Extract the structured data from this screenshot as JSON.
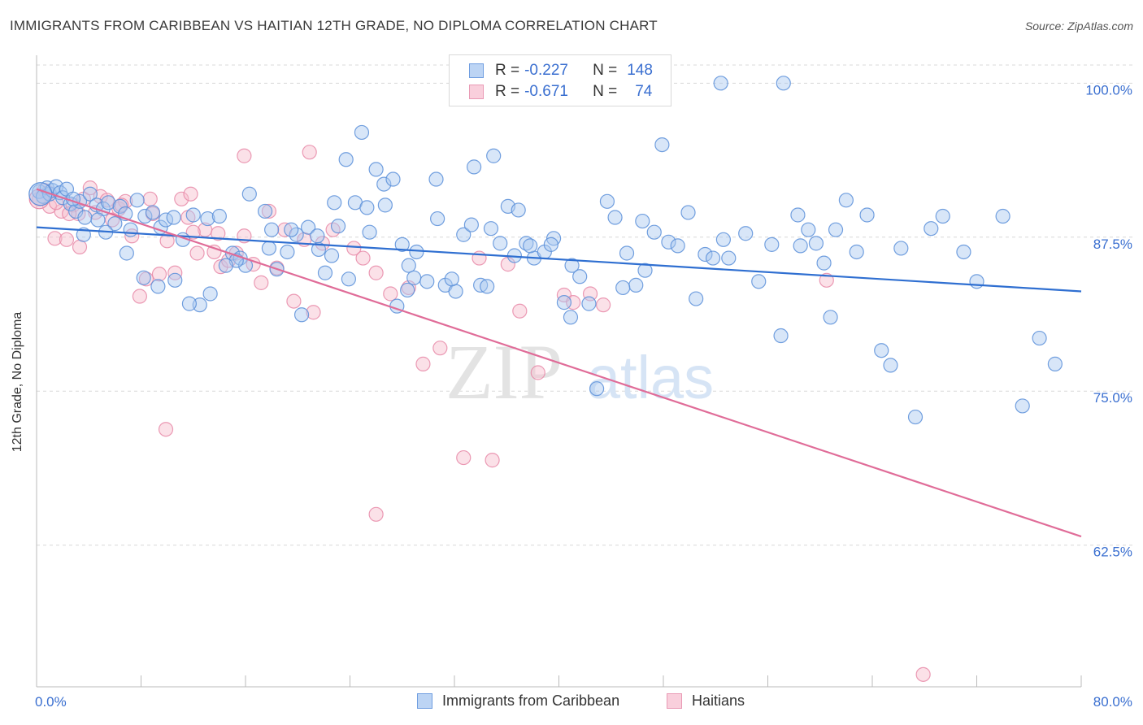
{
  "title": "IMMIGRANTS FROM CARIBBEAN VS HAITIAN 12TH GRADE, NO DIPLOMA CORRELATION CHART",
  "source": "Source: ZipAtlas.com",
  "watermark": {
    "zip": "ZIP",
    "atlas": "atlas"
  },
  "colors": {
    "blue_fill": "#a8c8f0",
    "blue_stroke": "#5b8fd9",
    "blue_line": "#2f6fd1",
    "pink_fill": "#f6bccd",
    "pink_stroke": "#e78aa8",
    "pink_line": "#e06c98",
    "axis_text": "#3a6fd0",
    "grid": "#d8d8d8"
  },
  "legend": {
    "rows": [
      {
        "r_label": "R =",
        "r_value": "-0.227",
        "n_label": "N =",
        "n_value": "148",
        "color": "blue"
      },
      {
        "r_label": "R =",
        "r_value": "-0.671",
        "n_label": "N =",
        "n_value": "74",
        "color": "pink"
      }
    ]
  },
  "bottom_legend": [
    {
      "label": "Immigrants from Caribbean",
      "color": "blue"
    },
    {
      "label": "Haitians",
      "color": "pink"
    }
  ],
  "chart_data": {
    "type": "scatter",
    "title": "IMMIGRANTS FROM CARIBBEAN VS HAITIAN 12TH GRADE, NO DIPLOMA CORRELATION CHART",
    "xlabel": "",
    "ylabel": "12th Grade, No Diploma",
    "xlim": [
      0,
      80
    ],
    "ylim": [
      51,
      102
    ],
    "x_tick_labels": [
      "0.0%",
      "80.0%"
    ],
    "y_ticks": [
      62.5,
      75.0,
      87.5,
      100.0
    ],
    "y_tick_labels": [
      "62.5%",
      "75.0%",
      "87.5%",
      "100.0%"
    ],
    "series": [
      {
        "name": "Immigrants from Caribbean",
        "color": "blue",
        "r": -0.227,
        "n": 148,
        "trend": {
          "x": [
            0,
            80
          ],
          "y": [
            88.3,
            83.1
          ]
        },
        "points": [
          [
            0.2,
            91.2
          ],
          [
            0.5,
            90.8
          ],
          [
            0.8,
            91.5
          ],
          [
            1.0,
            91.0
          ],
          [
            1.2,
            91.3
          ],
          [
            1.5,
            91.6
          ],
          [
            1.8,
            91.1
          ],
          [
            2.0,
            90.7
          ],
          [
            2.3,
            91.4
          ],
          [
            2.6,
            90.2
          ],
          [
            3.0,
            89.6
          ],
          [
            3.3,
            90.4
          ],
          [
            3.7,
            89.1
          ],
          [
            4.1,
            91.0
          ],
          [
            4.6,
            90.1
          ],
          [
            5.1,
            89.8
          ],
          [
            5.5,
            90.3
          ],
          [
            6.0,
            88.6
          ],
          [
            6.4,
            90.0
          ],
          [
            6.8,
            89.4
          ],
          [
            7.2,
            88.1
          ],
          [
            7.7,
            90.5
          ],
          [
            8.3,
            89.2
          ],
          [
            8.9,
            89.5
          ],
          [
            9.5,
            88.3
          ],
          [
            9.9,
            88.9
          ],
          [
            10.5,
            89.1
          ],
          [
            11.2,
            87.3
          ],
          [
            12.0,
            89.3
          ],
          [
            13.1,
            89.0
          ],
          [
            14.0,
            89.2
          ],
          [
            15.0,
            86.2
          ],
          [
            15.6,
            85.8
          ],
          [
            16.3,
            91.0
          ],
          [
            17.5,
            89.6
          ],
          [
            18.0,
            88.1
          ],
          [
            19.2,
            86.3
          ],
          [
            19.9,
            87.7
          ],
          [
            20.8,
            88.3
          ],
          [
            21.5,
            87.6
          ],
          [
            22.1,
            84.6
          ],
          [
            22.6,
            86.0
          ],
          [
            23.1,
            88.4
          ],
          [
            23.9,
            84.1
          ],
          [
            24.4,
            90.3
          ],
          [
            25.3,
            89.9
          ],
          [
            26.0,
            93.0
          ],
          [
            26.6,
            91.8
          ],
          [
            27.3,
            92.2
          ],
          [
            28.0,
            86.9
          ],
          [
            28.5,
            85.2
          ],
          [
            29.1,
            86.3
          ],
          [
            29.9,
            83.9
          ],
          [
            30.7,
            89.0
          ],
          [
            31.3,
            83.6
          ],
          [
            32.1,
            83.1
          ],
          [
            32.7,
            87.7
          ],
          [
            33.3,
            88.5
          ],
          [
            34.0,
            83.6
          ],
          [
            34.8,
            88.2
          ],
          [
            35.5,
            87.0
          ],
          [
            36.1,
            90.0
          ],
          [
            36.6,
            86.0
          ],
          [
            37.5,
            87.0
          ],
          [
            38.1,
            85.8
          ],
          [
            38.9,
            86.3
          ],
          [
            39.6,
            87.4
          ],
          [
            40.4,
            82.2
          ],
          [
            41.0,
            85.2
          ],
          [
            41.6,
            84.3
          ],
          [
            42.3,
            82.1
          ],
          [
            42.9,
            75.2
          ],
          [
            43.7,
            90.4
          ],
          [
            44.3,
            89.1
          ],
          [
            45.2,
            86.2
          ],
          [
            45.9,
            83.6
          ],
          [
            46.6,
            84.8
          ],
          [
            47.3,
            87.9
          ],
          [
            47.9,
            95.0
          ],
          [
            48.4,
            87.1
          ],
          [
            49.1,
            86.8
          ],
          [
            49.9,
            89.5
          ],
          [
            50.5,
            82.5
          ],
          [
            51.2,
            86.1
          ],
          [
            51.8,
            85.8
          ],
          [
            53.0,
            85.8
          ],
          [
            54.3,
            87.8
          ],
          [
            55.3,
            83.9
          ],
          [
            57.0,
            79.5
          ],
          [
            58.3,
            89.3
          ],
          [
            59.1,
            88.1
          ],
          [
            59.7,
            87.0
          ],
          [
            60.3,
            85.4
          ],
          [
            61.2,
            88.1
          ],
          [
            62.0,
            90.5
          ],
          [
            62.8,
            86.3
          ],
          [
            63.6,
            89.3
          ],
          [
            64.7,
            78.3
          ],
          [
            65.4,
            77.1
          ],
          [
            66.2,
            86.6
          ],
          [
            67.3,
            72.9
          ],
          [
            68.5,
            88.2
          ],
          [
            69.4,
            89.2
          ],
          [
            71.0,
            86.3
          ],
          [
            72.0,
            83.9
          ],
          [
            74.0,
            89.2
          ],
          [
            75.5,
            73.8
          ],
          [
            76.8,
            79.3
          ],
          [
            78.0,
            77.2
          ],
          [
            52.4,
            100.0
          ],
          [
            57.2,
            100.0
          ],
          [
            24.9,
            96.0
          ],
          [
            30.6,
            92.2
          ],
          [
            33.5,
            93.2
          ],
          [
            35.0,
            94.1
          ],
          [
            37.8,
            86.8
          ],
          [
            28.9,
            84.2
          ],
          [
            39.4,
            86.9
          ],
          [
            56.3,
            86.9
          ],
          [
            52.6,
            87.3
          ],
          [
            60.8,
            81.0
          ],
          [
            44.9,
            83.4
          ],
          [
            34.5,
            83.5
          ],
          [
            28.4,
            83.2
          ],
          [
            40.9,
            81.0
          ],
          [
            31.8,
            84.1
          ],
          [
            27.6,
            81.9
          ],
          [
            25.5,
            87.9
          ],
          [
            21.6,
            86.5
          ],
          [
            19.5,
            88.1
          ],
          [
            17.8,
            86.6
          ],
          [
            16.0,
            85.2
          ],
          [
            15.3,
            85.6
          ],
          [
            13.3,
            82.9
          ],
          [
            12.5,
            82.0
          ],
          [
            11.7,
            82.1
          ],
          [
            10.6,
            84.0
          ],
          [
            9.3,
            83.5
          ],
          [
            8.2,
            84.2
          ],
          [
            6.9,
            86.2
          ],
          [
            5.3,
            87.9
          ],
          [
            4.7,
            88.9
          ],
          [
            3.6,
            87.7
          ],
          [
            2.8,
            90.6
          ],
          [
            20.3,
            81.2
          ],
          [
            14.5,
            85.2
          ],
          [
            18.4,
            84.9
          ],
          [
            26.7,
            90.1
          ],
          [
            22.8,
            90.3
          ],
          [
            23.7,
            93.8
          ],
          [
            36.9,
            89.7
          ],
          [
            58.5,
            86.8
          ],
          [
            46.4,
            88.8
          ]
        ]
      },
      {
        "name": "Haitians",
        "color": "pink",
        "r": -0.671,
        "n": 74,
        "trend": {
          "x": [
            0,
            80
          ],
          "y": [
            91.4,
            63.2
          ]
        },
        "points": [
          [
            0.2,
            90.6
          ],
          [
            0.6,
            91.3
          ],
          [
            1.0,
            90.0
          ],
          [
            1.4,
            87.4
          ],
          [
            1.9,
            89.6
          ],
          [
            2.3,
            87.3
          ],
          [
            2.8,
            90.1
          ],
          [
            3.2,
            89.4
          ],
          [
            3.6,
            90.6
          ],
          [
            4.1,
            91.5
          ],
          [
            4.5,
            89.5
          ],
          [
            4.9,
            90.8
          ],
          [
            5.4,
            90.5
          ],
          [
            5.8,
            88.9
          ],
          [
            6.3,
            89.8
          ],
          [
            6.8,
            90.4
          ],
          [
            7.3,
            87.6
          ],
          [
            7.9,
            82.7
          ],
          [
            8.4,
            84.1
          ],
          [
            8.9,
            89.4
          ],
          [
            9.4,
            84.5
          ],
          [
            10.0,
            87.2
          ],
          [
            10.6,
            84.6
          ],
          [
            11.1,
            90.6
          ],
          [
            11.6,
            89.1
          ],
          [
            12.3,
            86.2
          ],
          [
            12.9,
            88.1
          ],
          [
            13.6,
            86.3
          ],
          [
            14.1,
            85.1
          ],
          [
            14.7,
            85.6
          ],
          [
            15.3,
            86.2
          ],
          [
            15.9,
            87.6
          ],
          [
            16.6,
            85.3
          ],
          [
            17.2,
            83.8
          ],
          [
            17.8,
            89.6
          ],
          [
            18.4,
            85.0
          ],
          [
            19.0,
            88.1
          ],
          [
            19.7,
            82.3
          ],
          [
            20.5,
            87.3
          ],
          [
            21.2,
            81.4
          ],
          [
            21.9,
            87.0
          ],
          [
            22.7,
            88.1
          ],
          [
            24.3,
            86.6
          ],
          [
            25.0,
            85.8
          ],
          [
            26.0,
            84.6
          ],
          [
            27.1,
            82.9
          ],
          [
            28.5,
            83.4
          ],
          [
            29.6,
            77.2
          ],
          [
            30.9,
            78.5
          ],
          [
            32.7,
            69.6
          ],
          [
            33.9,
            85.8
          ],
          [
            34.9,
            69.4
          ],
          [
            36.1,
            85.3
          ],
          [
            37.0,
            81.5
          ],
          [
            38.4,
            76.5
          ],
          [
            40.4,
            82.8
          ],
          [
            41.1,
            82.2
          ],
          [
            42.4,
            82.9
          ],
          [
            43.4,
            82.0
          ],
          [
            60.5,
            84.0
          ],
          [
            67.9,
            52.0
          ],
          [
            9.9,
            71.9
          ],
          [
            26.0,
            65.0
          ],
          [
            15.9,
            94.1
          ],
          [
            20.9,
            94.4
          ],
          [
            11.8,
            91.0
          ],
          [
            3.3,
            86.7
          ],
          [
            6.5,
            90.1
          ],
          [
            8.7,
            90.6
          ],
          [
            12.0,
            87.9
          ],
          [
            1.5,
            90.3
          ],
          [
            0.9,
            91.1
          ],
          [
            2.5,
            89.4
          ],
          [
            13.9,
            87.8
          ]
        ]
      }
    ]
  }
}
